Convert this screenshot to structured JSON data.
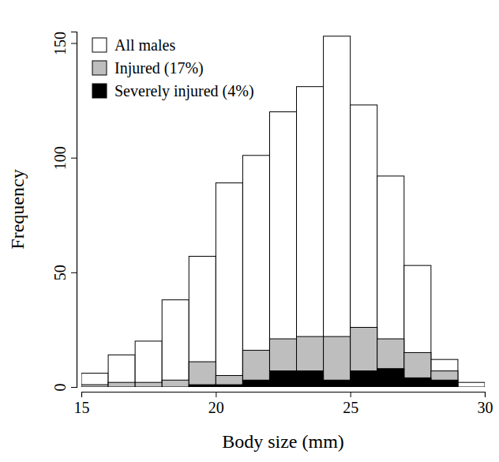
{
  "chart_data": {
    "type": "histogram",
    "x_label": "Body size (mm)",
    "y_label": "Frequency",
    "bins": [
      15,
      16,
      17,
      18,
      19,
      20,
      21,
      22,
      23,
      24,
      25,
      26,
      27,
      28,
      29,
      30
    ],
    "series": [
      {
        "name": "All males",
        "color": "#ffffff",
        "values": [
          6,
          14,
          20,
          38,
          57,
          89,
          101,
          120,
          131,
          153,
          123,
          92,
          53,
          12,
          2
        ]
      },
      {
        "name": "Injured (17%)",
        "color": "#bebebe",
        "values": [
          1,
          2,
          2,
          3,
          11,
          5,
          16,
          21,
          22,
          22,
          26,
          21,
          15,
          7,
          0
        ]
      },
      {
        "name": "Severely injured (4%)",
        "color": "#000000",
        "values": [
          0,
          0,
          0,
          0,
          1,
          1,
          3,
          7,
          7,
          3,
          7,
          8,
          4,
          3,
          0
        ]
      }
    ],
    "xlim": [
      15,
      30
    ],
    "ylim": [
      0,
      155
    ],
    "xticks": [
      15,
      20,
      25,
      30
    ],
    "yticks": [
      0,
      50,
      100,
      150
    ],
    "legend": "top-left",
    "grid": false,
    "stacked": false
  }
}
